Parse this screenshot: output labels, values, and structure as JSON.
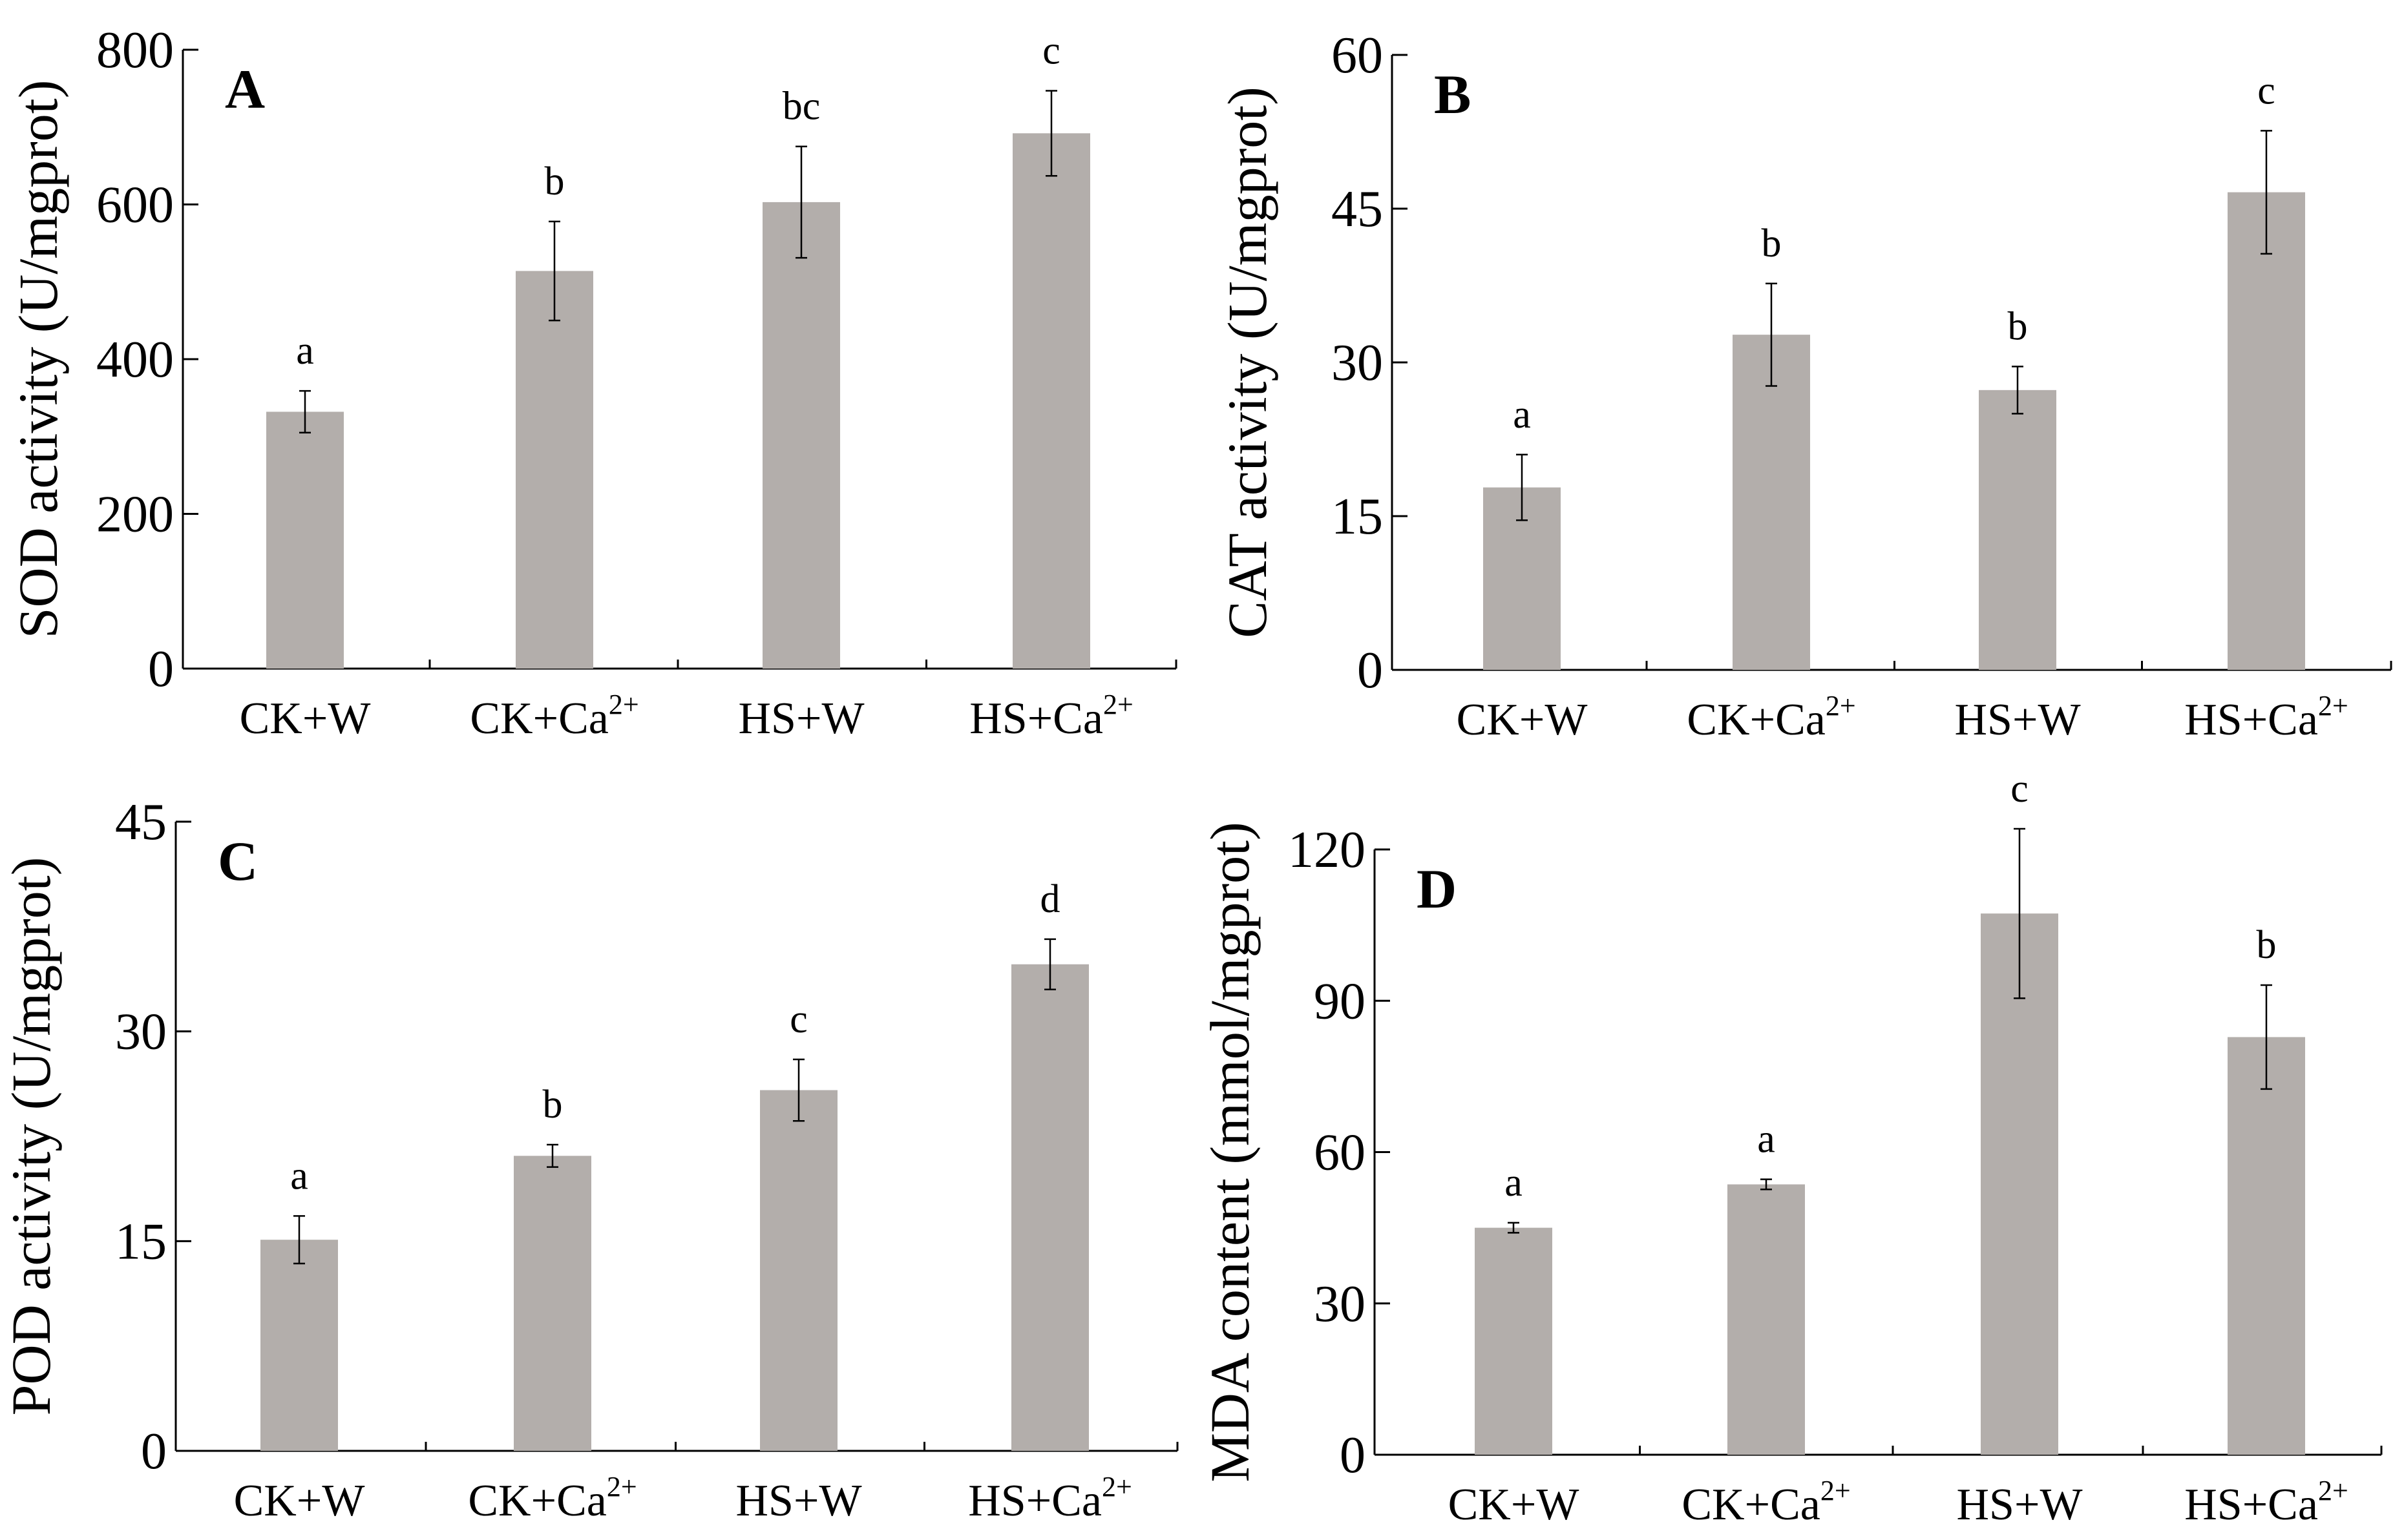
{
  "chart_data": [
    {
      "panel_label": "A",
      "type": "bar",
      "ylabel": "SOD activity (U/mgprot)",
      "ylim": [
        0,
        800
      ],
      "yticks": [
        0,
        200,
        400,
        600,
        800
      ],
      "categories": [
        {
          "base": "CK+W",
          "sup": ""
        },
        {
          "base": "CK+Ca",
          "sup": "2+"
        },
        {
          "base": "HS+W",
          "sup": ""
        },
        {
          "base": "HS+Ca",
          "sup": "2+"
        }
      ],
      "values": [
        332,
        514,
        603,
        692
      ],
      "errors": [
        27,
        64,
        72,
        55
      ],
      "letters": [
        "a",
        "b",
        "bc",
        "c"
      ],
      "bar_color": "#b3aeab"
    },
    {
      "panel_label": "B",
      "type": "bar",
      "ylabel": "CAT activity (U/mgprot)",
      "ylim": [
        0,
        60
      ],
      "yticks": [
        0,
        15,
        30,
        45,
        60
      ],
      "categories": [
        {
          "base": "CK+W",
          "sup": ""
        },
        {
          "base": "CK+Ca",
          "sup": "2+"
        },
        {
          "base": "HS+W",
          "sup": ""
        },
        {
          "base": "HS+Ca",
          "sup": "2+"
        }
      ],
      "values": [
        17.8,
        32.7,
        27.3,
        46.6
      ],
      "errors": [
        3.2,
        5.0,
        2.3,
        6.0
      ],
      "letters": [
        "a",
        "b",
        "b",
        "c"
      ],
      "bar_color": "#b3aeab"
    },
    {
      "panel_label": "C",
      "type": "bar",
      "ylabel": "POD activity (U/mgprot)",
      "ylim": [
        0,
        45
      ],
      "yticks": [
        0,
        15,
        30,
        45
      ],
      "categories": [
        {
          "base": "CK+W",
          "sup": ""
        },
        {
          "base": "CK+Ca",
          "sup": "2+"
        },
        {
          "base": "HS+W",
          "sup": ""
        },
        {
          "base": "HS+Ca",
          "sup": "2+"
        }
      ],
      "values": [
        15.1,
        21.1,
        25.8,
        34.8
      ],
      "errors": [
        1.7,
        0.8,
        2.2,
        1.8
      ],
      "letters": [
        "a",
        "b",
        "c",
        "d"
      ],
      "bar_color": "#b3aeab"
    },
    {
      "panel_label": "D",
      "type": "bar",
      "ylabel": "MDA content (mmol/mgprot)",
      "ylim": [
        0,
        120
      ],
      "yticks": [
        0,
        30,
        60,
        90,
        120
      ],
      "categories": [
        {
          "base": "CK+W",
          "sup": ""
        },
        {
          "base": "CK+Ca",
          "sup": "2+"
        },
        {
          "base": "HS+W",
          "sup": ""
        },
        {
          "base": "HS+Ca",
          "sup": "2+"
        }
      ],
      "values": [
        45.0,
        53.6,
        107.3,
        82.8
      ],
      "errors": [
        1.0,
        1.0,
        16.8,
        10.3
      ],
      "letters": [
        "a",
        "a",
        "c",
        "b"
      ],
      "bar_color": "#b3aeab"
    }
  ]
}
